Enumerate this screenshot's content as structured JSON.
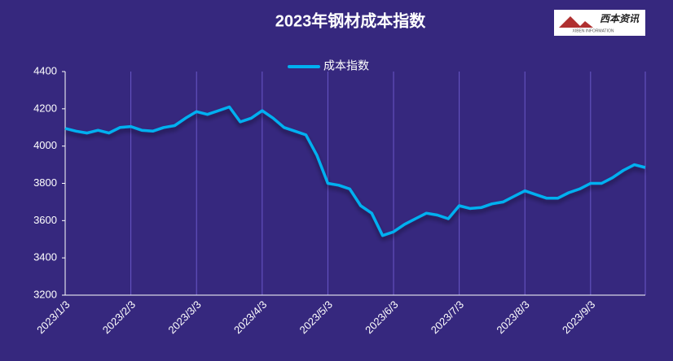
{
  "chart_data": {
    "type": "line",
    "title": "2023年钢材成本指数",
    "categories": [
      "2023/1/3",
      null,
      null,
      null,
      null,
      null,
      "2023/2/3",
      null,
      null,
      null,
      null,
      null,
      "2023/3/3",
      null,
      null,
      null,
      null,
      null,
      "2023/4/3",
      null,
      null,
      null,
      null,
      null,
      "2023/5/3",
      null,
      null,
      null,
      null,
      null,
      "2023/6/3",
      null,
      null,
      null,
      null,
      null,
      "2023/7/3",
      null,
      null,
      null,
      null,
      null,
      "2023/8/3",
      null,
      null,
      null,
      null,
      null,
      "2023/9/3",
      null,
      null,
      null,
      null,
      null
    ],
    "series": [
      {
        "name": "成本指数",
        "color": "#00b0f0",
        "values": [
          4095,
          4080,
          4070,
          4085,
          4070,
          4100,
          4105,
          4085,
          4080,
          4100,
          4110,
          4150,
          4185,
          4170,
          4190,
          4210,
          4130,
          4150,
          4190,
          4150,
          4100,
          4080,
          4060,
          3950,
          3800,
          3790,
          3770,
          3680,
          3640,
          3520,
          3540,
          3580,
          3610,
          3640,
          3630,
          3610,
          3680,
          3665,
          3670,
          3690,
          3700,
          3730,
          3760,
          3740,
          3720,
          3720,
          3750,
          3770,
          3800,
          3800,
          3830,
          3870,
          3900,
          3885
        ]
      }
    ],
    "ylim": [
      3200,
      4400
    ],
    "yticks": [
      3200,
      3400,
      3600,
      3800,
      4000,
      4200,
      4400
    ],
    "grid": true,
    "legend": "top"
  },
  "logo": {
    "text": "西本资讯",
    "subtext": "XIBEN INFORMATION"
  }
}
